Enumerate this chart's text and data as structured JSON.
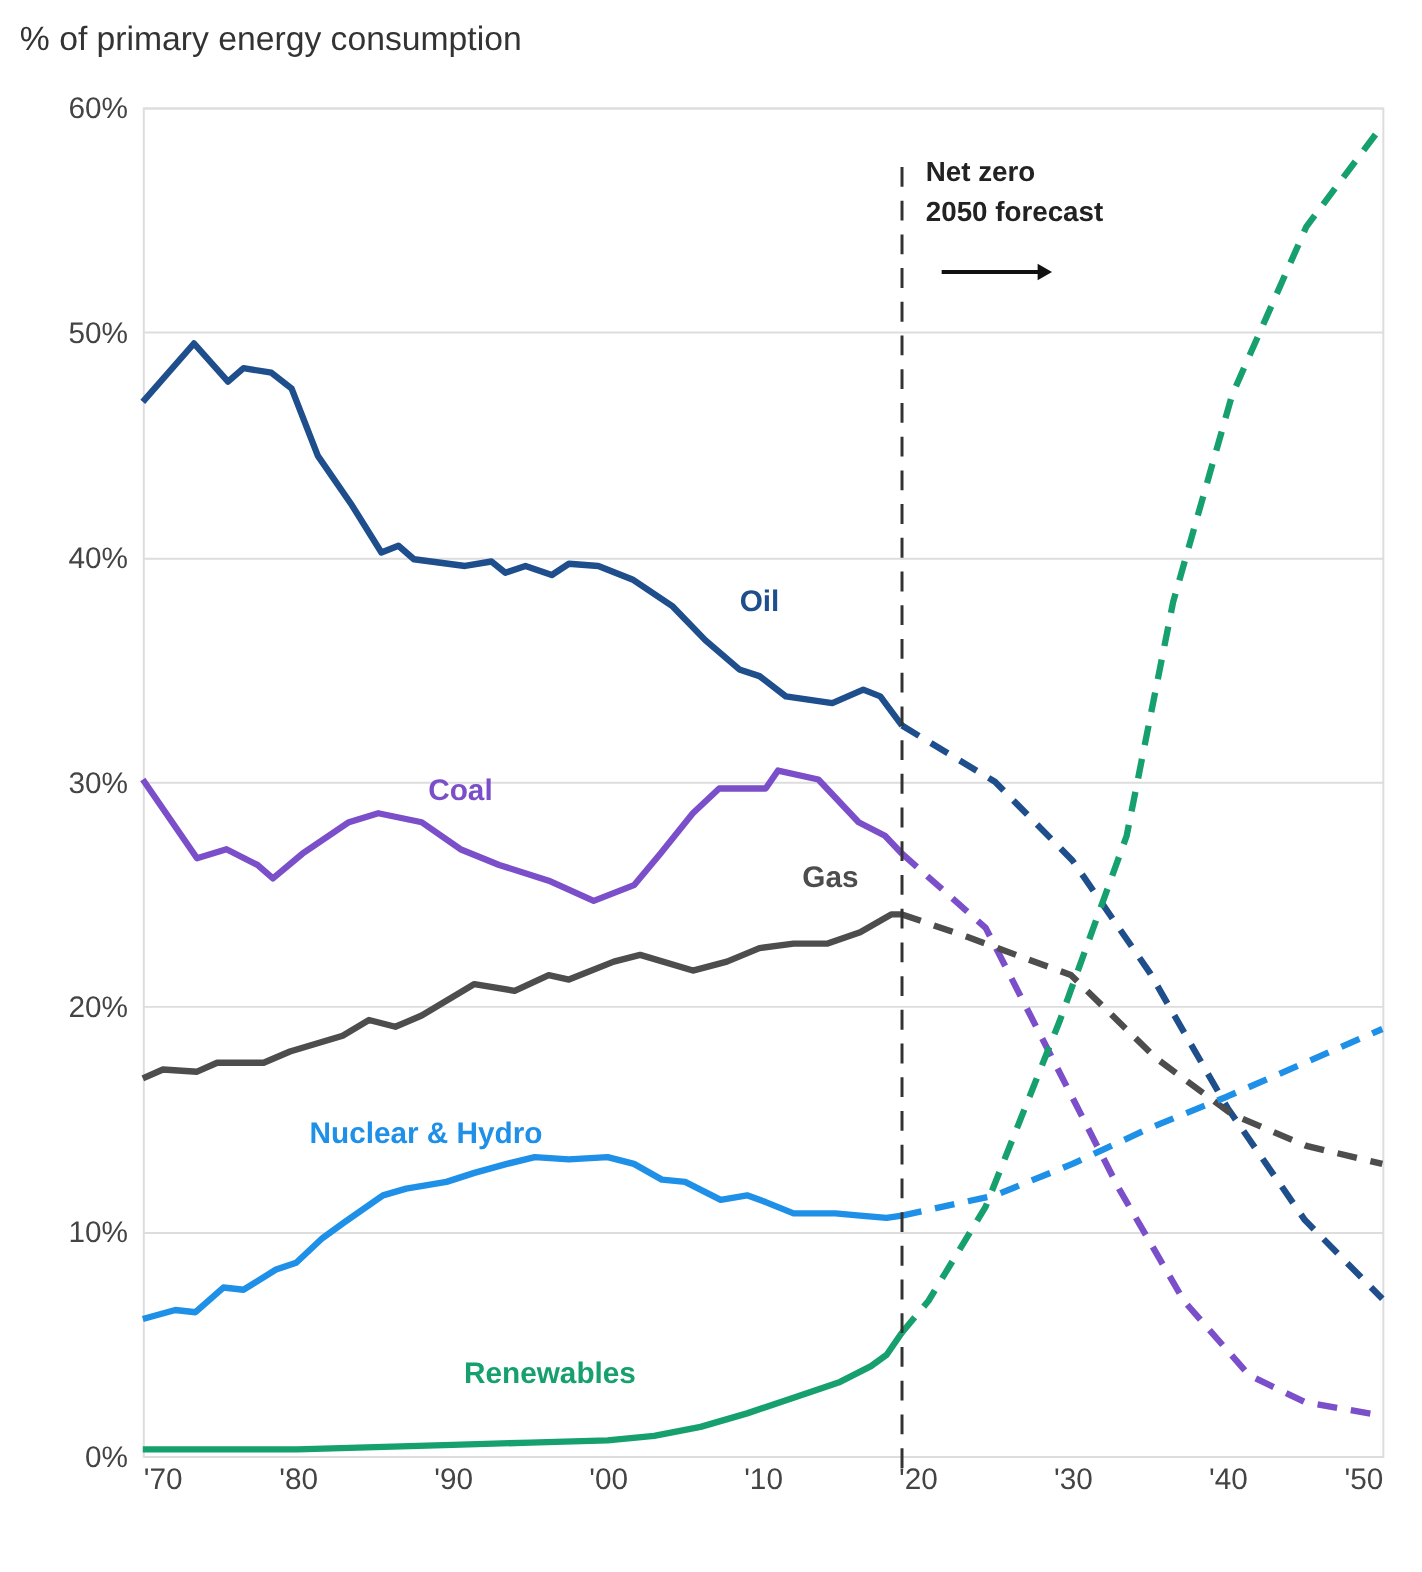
{
  "chart_data": {
    "type": "line",
    "ylabel": "% of primary energy consumption",
    "xlim": [
      1970,
      2050
    ],
    "ylim": [
      0,
      60
    ],
    "xticks": [
      {
        "value": 1970,
        "label": "'70"
      },
      {
        "value": 1980,
        "label": "'80"
      },
      {
        "value": 1990,
        "label": "'90"
      },
      {
        "value": 2000,
        "label": "'00"
      },
      {
        "value": 2010,
        "label": "'10"
      },
      {
        "value": 2020,
        "label": "'20"
      },
      {
        "value": 2030,
        "label": "'30"
      },
      {
        "value": 2040,
        "label": "'40"
      },
      {
        "value": 2050,
        "label": "'50"
      }
    ],
    "yticks": [
      {
        "value": 0,
        "label": "0%"
      },
      {
        "value": 10,
        "label": "10%"
      },
      {
        "value": 20,
        "label": "20%"
      },
      {
        "value": 30,
        "label": "30%"
      },
      {
        "value": 40,
        "label": "40%"
      },
      {
        "value": 50,
        "label": "50%"
      },
      {
        "value": 60,
        "label": "60%"
      }
    ],
    "grid": "y",
    "marker": "none",
    "series": [
      {
        "name": "Oil",
        "color": "#1f4e8c",
        "line_style": "solid",
        "x": [
          1970,
          1973.3,
          1975.5,
          1976.5,
          1978.3,
          1979.6,
          1981.3,
          1983.5,
          1985.4,
          1986.5,
          1987.5,
          1990.8,
          1992.5,
          1993.4,
          1994.7,
          1996.4,
          1997.5,
          1999.4,
          2001.6,
          2004.2,
          2006.3,
          2008.5,
          2009.8,
          2011.5,
          2014.5,
          2016.5,
          2017.6,
          2019
        ],
        "values": [
          46.9,
          49.5,
          47.8,
          48.4,
          48.2,
          47.5,
          44.5,
          42.3,
          40.2,
          40.5,
          39.9,
          39.6,
          39.8,
          39.3,
          39.6,
          39.2,
          39.7,
          39.6,
          39.0,
          37.8,
          36.3,
          35.0,
          34.7,
          33.8,
          33.5,
          34.1,
          33.8,
          32.5
        ]
      },
      {
        "name": "Coal",
        "color": "#7b4fc9",
        "line_style": "solid",
        "x": [
          1970,
          1973.5,
          1975.4,
          1977.4,
          1978.4,
          1980.3,
          1983.3,
          1985.2,
          1988,
          1990.5,
          1993,
          1996.2,
          1999.1,
          2001.7,
          2003.4,
          2005.5,
          2007.2,
          2010.2,
          2011,
          2013.6,
          2016.2,
          2017.9,
          2019
        ],
        "values": [
          30.1,
          26.6,
          27.0,
          26.3,
          25.7,
          26.8,
          28.2,
          28.6,
          28.2,
          27.0,
          26.3,
          25.6,
          24.7,
          25.4,
          26.8,
          28.6,
          29.7,
          29.7,
          30.5,
          30.1,
          28.2,
          27.6,
          26.8
        ]
      },
      {
        "name": "Gas",
        "color": "#4d4d4d",
        "line_style": "solid",
        "x": [
          1970,
          1971.3,
          1973.5,
          1974.8,
          1977.8,
          1979.5,
          1982.9,
          1984.6,
          1986.3,
          1988,
          1991.4,
          1994,
          1996.2,
          1997.5,
          2000.4,
          2002.1,
          2005.5,
          2007.7,
          2009.8,
          2012,
          2014.2,
          2016.3,
          2018.3,
          2019
        ],
        "values": [
          16.8,
          17.2,
          17.1,
          17.5,
          17.5,
          18.0,
          18.7,
          19.4,
          19.1,
          19.6,
          21.0,
          20.7,
          21.4,
          21.2,
          22.0,
          22.3,
          21.6,
          22.0,
          22.6,
          22.8,
          22.8,
          23.3,
          24.1,
          24.1
        ]
      },
      {
        "name": "Nuclear & Hydro",
        "color": "#1e90e8",
        "line_style": "solid",
        "x": [
          1970,
          1972.1,
          1973.4,
          1975.2,
          1976.5,
          1978.6,
          1979.9,
          1981.6,
          1983,
          1985.5,
          1987,
          1989.6,
          1991.4,
          1993.5,
          1995.3,
          1997.5,
          2000,
          2001.7,
          2003.5,
          2005,
          2007.3,
          2009,
          2010.2,
          2012,
          2014.7,
          2016.3,
          2018,
          2019
        ],
        "values": [
          6.1,
          6.5,
          6.4,
          7.5,
          7.4,
          8.3,
          8.6,
          9.7,
          10.4,
          11.6,
          11.9,
          12.2,
          12.6,
          13.0,
          13.3,
          13.2,
          13.3,
          13.0,
          12.3,
          12.2,
          11.4,
          11.6,
          11.3,
          10.8,
          10.8,
          10.7,
          10.6,
          10.7
        ]
      },
      {
        "name": "Renewables",
        "color": "#15a06e",
        "line_style": "solid",
        "x": [
          1970,
          1980,
          1990,
          1995,
          2000,
          2003,
          2006,
          2009,
          2012,
          2015,
          2017,
          2018,
          2019
        ],
        "values": [
          0.3,
          0.3,
          0.5,
          0.6,
          0.7,
          0.9,
          1.3,
          1.9,
          2.6,
          3.3,
          4.0,
          4.5,
          5.5
        ]
      },
      {
        "color": "#1f4e8c",
        "line_style": "dashed",
        "x": [
          2019,
          2025,
          2030,
          2035,
          2040,
          2045,
          2050
        ],
        "values": [
          32.5,
          30.0,
          26.5,
          21.5,
          15.5,
          10.5,
          7.0
        ]
      },
      {
        "color": "#7b4fc9",
        "line_style": "dashed",
        "x": [
          2019,
          2024.4,
          2028.7,
          2033,
          2037.2,
          2041.4,
          2045,
          2050
        ],
        "values": [
          26.8,
          23.5,
          17.7,
          11.9,
          6.9,
          3.6,
          2.4,
          1.8
        ]
      },
      {
        "color": "#4d4d4d",
        "line_style": "dashed",
        "x": [
          2019,
          2023.2,
          2029.9,
          2035.4,
          2040.3,
          2045.1,
          2050
        ],
        "values": [
          24.1,
          23.1,
          21.4,
          17.7,
          15.2,
          13.8,
          13.0
        ]
      },
      {
        "color": "#1e90e8",
        "line_style": "dashed",
        "x": [
          2019,
          2025,
          2030,
          2035,
          2040,
          2045,
          2050
        ],
        "values": [
          10.7,
          11.6,
          13.0,
          14.6,
          16.0,
          17.5,
          19.0
        ]
      },
      {
        "color": "#15a06e",
        "line_style": "dashed",
        "x": [
          2019,
          2020.7,
          2024.4,
          2029.2,
          2033.5,
          2036.5,
          2040.3,
          2045.1,
          2050
        ],
        "values": [
          5.5,
          6.9,
          11.1,
          19.4,
          27.6,
          38.0,
          47.2,
          54.7,
          59.2
        ]
      }
    ],
    "ref_lines": [
      {
        "axis": "x",
        "value": 2019,
        "label": "Net zero\n2050 forecast",
        "color": "#333333",
        "line_style": "dashed"
      }
    ]
  }
}
